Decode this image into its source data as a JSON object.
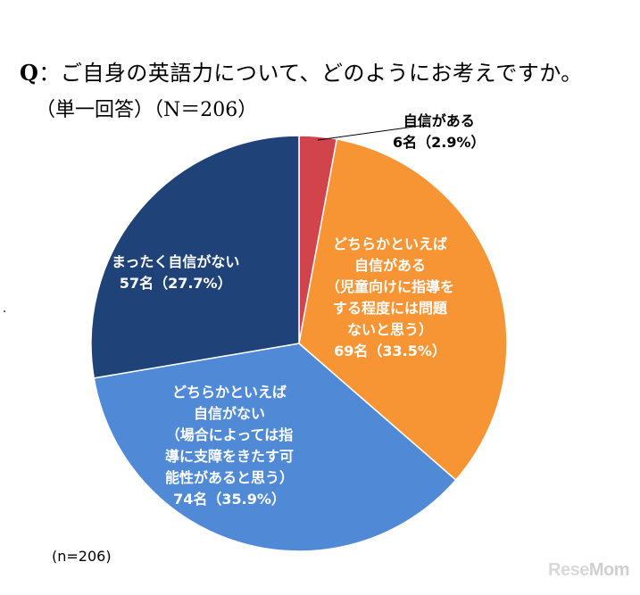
{
  "title": {
    "q": "Q",
    "text": "：ご自身の英語力について、どのようにお考えですか。"
  },
  "subtitle": "（単一回答）（N＝206）",
  "chart_data": {
    "type": "pie",
    "n": 206,
    "slices": [
      {
        "label_lines": [
          "自信がある",
          "6名（2.9%）"
        ],
        "count": 6,
        "percent": 2.9,
        "color": "#d2444b"
      },
      {
        "label_lines": [
          "どちらかといえば",
          "自信がある",
          "（児童向けに指導を",
          "する程度には問題",
          "ないと思う）",
          "69名（33.5%）"
        ],
        "count": 69,
        "percent": 33.5,
        "color": "#f79535"
      },
      {
        "label_lines": [
          "どちらかといえば",
          "自信がない",
          "（場合によっては指",
          "導に支障をきたす可",
          "能性があると思う）",
          "74名（35.9%）"
        ],
        "count": 74,
        "percent": 35.9,
        "color": "#508ad6"
      },
      {
        "label_lines": [
          "まったく自信がない",
          "57名（27.7%）"
        ],
        "count": 57,
        "percent": 27.7,
        "color": "#1f4378"
      }
    ]
  },
  "footnote": "(n=206)",
  "logo": {
    "part1": "Rese",
    "part2": "Mom"
  }
}
